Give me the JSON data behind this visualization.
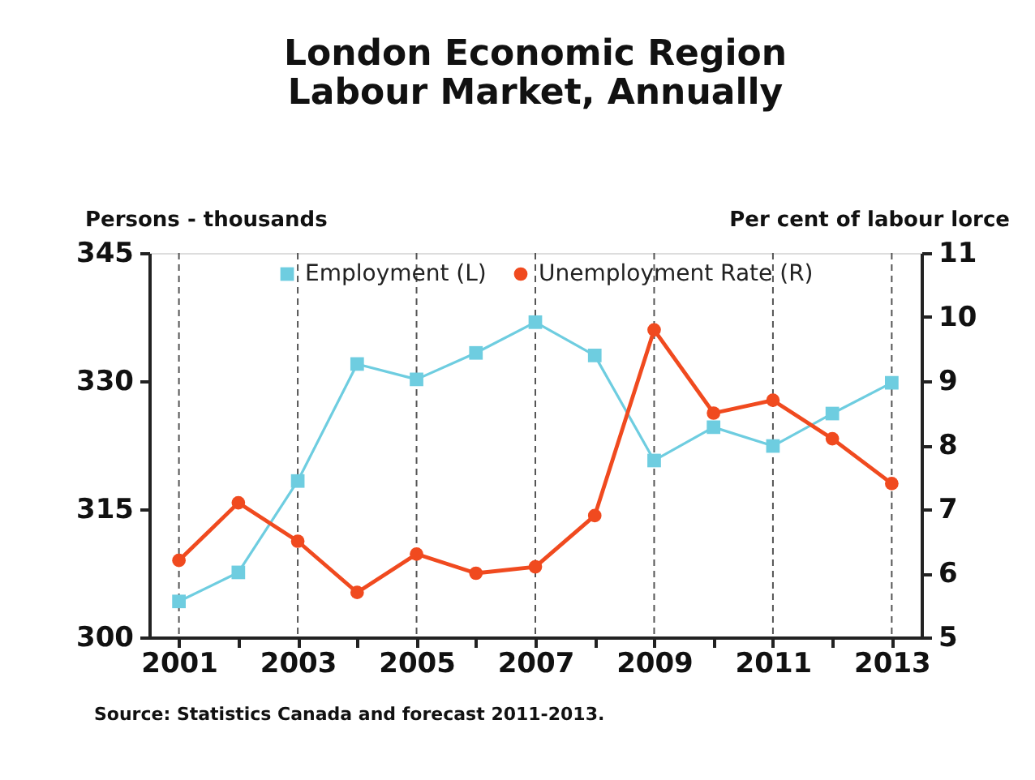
{
  "chart_data": {
    "type": "line",
    "title": [
      "London Economic Region",
      "Labour Market, Annually"
    ],
    "ylabel": "Persons - thousands",
    "y2label": "Per cent of labour lorce",
    "x": [
      2001,
      2002,
      2003,
      2004,
      2005,
      2006,
      2007,
      2008,
      2009,
      2010,
      2011,
      2012,
      2013
    ],
    "series": [
      {
        "name": "Employment (L)",
        "color": "#6ecde0",
        "marker": "square",
        "values": [
          304.2,
          307.6,
          318.3,
          332,
          330.2,
          333.3,
          336.9,
          333,
          320.7,
          324.6,
          322.4,
          326.2,
          329.8
        ]
      },
      {
        "name": "Unemployment Rate (R)",
        "color": "#f04a1f",
        "marker": "circle",
        "axis": "y2",
        "values": [
          6.2,
          7.1,
          6.5,
          5.7,
          6.3,
          6.0,
          6.1,
          6.9,
          9.8,
          8.5,
          8.7,
          8.1,
          7.4
        ]
      }
    ],
    "xlim": [
      2000.5,
      2013.5
    ],
    "xticks": [
      2001,
      {
        "value": 2002,
        "label": null
      },
      2003,
      {
        "value": 2004,
        "label": null
      },
      2005,
      {
        "value": 2006,
        "label": null
      },
      2007,
      {
        "value": 2008,
        "label": null
      },
      2009,
      {
        "value": 2010,
        "label": null
      },
      2011,
      {
        "value": 2012,
        "label": null
      },
      2013
    ],
    "ylim": [
      300,
      345
    ],
    "yticks": [
      300,
      315,
      330,
      345
    ],
    "y2lim": [
      5,
      11
    ],
    "y2ticks": [
      5,
      6,
      7,
      8,
      9,
      10,
      11
    ],
    "grid": "x",
    "legend": "top",
    "line_style": "solid",
    "annotations": [
      "Source: Statistics Canada and forecast 2011-2013."
    ]
  }
}
